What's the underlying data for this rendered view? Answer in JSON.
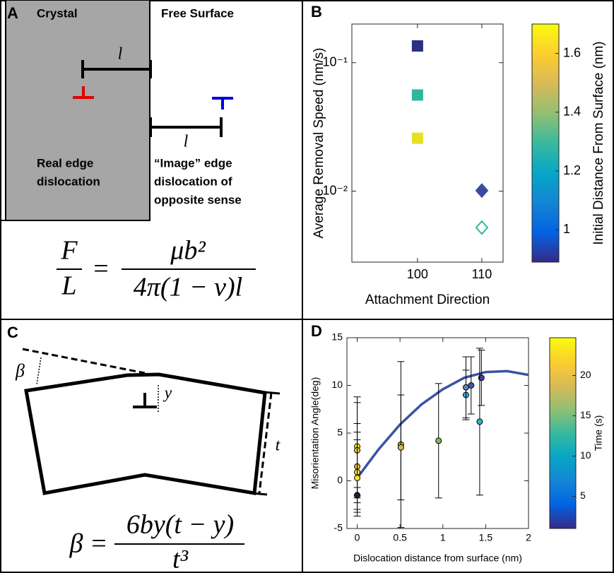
{
  "diagrams": {
    "A": {
      "panel": "A",
      "crystal": "Crystal",
      "free_surface": "Free Surface",
      "l_top": "l",
      "l_bottom": "l",
      "real": [
        "Real edge",
        "dislocation"
      ],
      "image": [
        "“Image” edge",
        "dislocation of",
        "opposite sense"
      ],
      "equation": {
        "lhs_num": "F",
        "lhs_den": "L",
        "eq": "=",
        "rhs_num": "μb²",
        "rhs_den": "4π(1 − ν)l"
      }
    },
    "C": {
      "panel": "C",
      "beta": "β",
      "y": "y",
      "t": "t",
      "equation": {
        "lhs": "β",
        "eq": "=",
        "rhs_num": "6by(t − y)",
        "rhs_den": "t³"
      }
    }
  },
  "chart_data": [
    {
      "type": "scatter",
      "panel": "B",
      "ylabel": "Average Removal Speed (nm/s)",
      "xlabel": "Attachment Direction",
      "yscale": "log",
      "xlim": [
        89.8,
        113.3
      ],
      "xticks": [
        100,
        110
      ],
      "ylim": [
        0.0028,
        0.2
      ],
      "yticks": [
        {
          "value": 0.1,
          "label": "10⁻¹"
        },
        {
          "value": 0.01,
          "label": "10⁻²"
        }
      ],
      "series": [
        {
          "marker": "square",
          "x": [
            100,
            100,
            100
          ],
          "values": [
            0.135,
            0.056,
            0.0258
          ],
          "colors": [
            "#2c2f86",
            "#2fb79c",
            "#e9e026"
          ],
          "filled": [
            true,
            true,
            true
          ]
        },
        {
          "marker": "diamond",
          "x": [
            110,
            110
          ],
          "values": [
            0.0101,
            0.0052
          ],
          "colors": [
            "#3b4ba0",
            "#2fb79c"
          ],
          "filled": [
            true,
            false
          ]
        }
      ],
      "colorbar": {
        "label": "Initial Distance From Surface (nm)",
        "lim": [
          0.89,
          1.7
        ],
        "ticks": [
          1,
          1.2,
          1.4,
          1.6
        ],
        "colormap": [
          "#352a87",
          "#0363e1",
          "#1485d4",
          "#06a7c6",
          "#38b99e",
          "#92bf73",
          "#d9ba56",
          "#fcce2e",
          "#f9fb0e"
        ]
      }
    },
    {
      "type": "scatter",
      "panel": "D",
      "ylabel": "Misorientation Angle(deg)",
      "xlabel": "Dislocation distance from surface (nm)",
      "xlim": [
        -0.12,
        2
      ],
      "xticks": [
        0,
        0.5,
        1,
        1.5,
        2
      ],
      "ylim": [
        -5,
        15
      ],
      "yticks": [
        -5,
        0,
        5,
        10,
        15
      ],
      "series": [
        {
          "type": "line",
          "color": "#3a53a4",
          "x": [
            0,
            0.25,
            0.5,
            0.75,
            1,
            1.25,
            1.5,
            1.75,
            2
          ],
          "values": [
            0.3,
            3.3,
            5.9,
            8.0,
            9.6,
            10.8,
            11.4,
            11.5,
            11.1
          ]
        },
        {
          "marker": "circle",
          "x": [
            0,
            0,
            0,
            0,
            0,
            0,
            0.51,
            0.51,
            0.95,
            1.27,
            1.27,
            1.33,
            1.45,
            1.43
          ],
          "values": [
            3.6,
            3.2,
            1.5,
            0.9,
            0.3,
            -1.5,
            3.8,
            3.5,
            4.2,
            9.0,
            9.8,
            10.0,
            10.8,
            6.2
          ],
          "errors": [
            5.2,
            5.0,
            4.5,
            4.2,
            4.0,
            0.8,
            8.7,
            5.5,
            6.0,
            2.6,
            3.2,
            3.0,
            2.9,
            7.7
          ],
          "colors": [
            "#f9e51e",
            "#f0d131",
            "#e2b840",
            "#f6df2a",
            "#f9e51e",
            "#222222",
            "#a5bf4b",
            "#d8ba3e",
            "#7dba5a",
            "#3ea8d9",
            "#5c7fbf",
            "#4a52a8",
            "#4a3fa0",
            "#25b6d2"
          ]
        }
      ],
      "colorbar": {
        "label": "Time (s)",
        "lim": [
          1,
          24.7
        ],
        "ticks": [
          5,
          10,
          15,
          20
        ],
        "colormap": [
          "#352a87",
          "#0363e1",
          "#1485d4",
          "#06a7c6",
          "#38b99e",
          "#92bf73",
          "#d9ba56",
          "#fcce2e",
          "#f9fb0e"
        ]
      }
    }
  ]
}
